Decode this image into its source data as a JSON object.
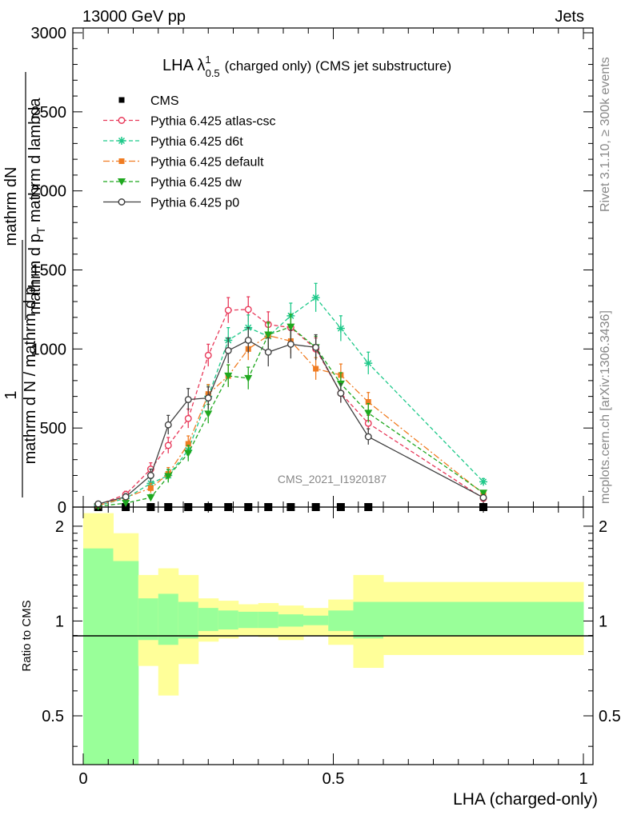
{
  "header": {
    "left": "13000 GeV pp",
    "right": "Jets",
    "rivet_label": "Rivet 3.1.10, ≥ 300k events",
    "source_label": "mcplots.cern.ch [arXiv:1306.3436]",
    "watermark": "CMS_2021_I1920187"
  },
  "top_panel": {
    "title_main": "LHA λ",
    "title_sup": "1",
    "title_sub": "0.5",
    "title_rest": "(charged only) (CMS jet substructure)",
    "ylabel_num": "mathrm dN",
    "ylabel_den_1": "mathrm d p",
    "ylabel_den_T": "T",
    "ylabel_den_2": " mathrm d lambda",
    "ylabel_lead": "1",
    "ylabel_lead_den": "mathrm d N / mathrm d p",
    "ylabel_lead_T": "T",
    "y_ticks": [
      "0",
      "500",
      "1000",
      "1500",
      "2000",
      "2500",
      "3000"
    ]
  },
  "ratio_panel": {
    "ylabel": "Ratio to CMS",
    "y_ticks_left": [
      "0.5",
      "1",
      "2"
    ],
    "y_ticks_right": [
      "0.5",
      "1",
      "2"
    ],
    "x_ticks": [
      "0",
      "0.5",
      "1"
    ],
    "xlabel": "LHA (charged-only)"
  },
  "colors": {
    "data": "#000000",
    "atlas_csc": "#e8395a",
    "d6t": "#1fc98a",
    "default": "#f07c22",
    "dw": "#1fa81f",
    "p0": "#404040",
    "band_inner": "#99ff99",
    "band_outer": "#ffff99"
  },
  "chart_data": {
    "type": "line",
    "xlabel": "LHA (charged-only)",
    "xlim": [
      0,
      1
    ],
    "ylim": [
      0,
      3000
    ],
    "x": [
      0.03,
      0.085,
      0.135,
      0.17,
      0.21,
      0.25,
      0.29,
      0.33,
      0.37,
      0.415,
      0.465,
      0.515,
      0.57,
      0.8
    ],
    "bin_edges": [
      0,
      0.06,
      0.11,
      0.15,
      0.19,
      0.23,
      0.27,
      0.31,
      0.35,
      0.39,
      0.44,
      0.49,
      0.54,
      0.6,
      1.0
    ],
    "series": [
      {
        "name": "CMS",
        "style": "data",
        "values": [
          0,
          0,
          0,
          0,
          0,
          0,
          0,
          0,
          0,
          0,
          0,
          0,
          0,
          0
        ]
      },
      {
        "name": "Pythia 6.425 atlas-csc",
        "style": "atlas_csc",
        "values": [
          15,
          80,
          240,
          390,
          560,
          960,
          1245,
          1250,
          1155,
          1135,
          1000,
          720,
          530,
          55
        ],
        "errors": [
          10,
          20,
          40,
          50,
          60,
          70,
          80,
          80,
          80,
          80,
          70,
          60,
          50,
          15
        ]
      },
      {
        "name": "Pythia 6.425 d6t",
        "style": "d6t",
        "values": [
          10,
          55,
          150,
          200,
          360,
          700,
          1055,
          1135,
          1080,
          1210,
          1325,
          1130,
          910,
          160
        ],
        "errors": [
          8,
          15,
          30,
          40,
          50,
          70,
          80,
          80,
          80,
          80,
          90,
          80,
          70,
          20
        ]
      },
      {
        "name": "Pythia 6.425 default",
        "style": "default",
        "values": [
          10,
          60,
          120,
          210,
          400,
          715,
          830,
          1000,
          1085,
          1050,
          875,
          835,
          665,
          85
        ],
        "errors": [
          8,
          15,
          30,
          40,
          50,
          60,
          70,
          70,
          80,
          80,
          70,
          70,
          60,
          15
        ]
      },
      {
        "name": "Pythia 6.425 dw",
        "style": "dw",
        "values": [
          5,
          25,
          60,
          195,
          340,
          590,
          830,
          815,
          1090,
          1140,
          1010,
          780,
          595,
          90
        ],
        "errors": [
          5,
          10,
          20,
          40,
          50,
          60,
          70,
          70,
          80,
          80,
          70,
          70,
          60,
          15
        ]
      },
      {
        "name": "Pythia 6.425 p0",
        "style": "p0",
        "values": [
          20,
          65,
          200,
          520,
          680,
          690,
          990,
          1055,
          980,
          1030,
          1010,
          720,
          445,
          60
        ],
        "errors": [
          10,
          20,
          40,
          60,
          70,
          70,
          80,
          80,
          90,
          90,
          80,
          60,
          50,
          15
        ]
      }
    ],
    "ratio": {
      "ylim": [
        0.35,
        2.3
      ],
      "scale": "log",
      "reference": 1,
      "inner_band_upper": [
        1.7,
        1.55,
        1.18,
        1.22,
        1.15,
        1.1,
        1.08,
        1.07,
        1.07,
        1.05,
        1.04,
        1.08,
        1.15,
        1.15
      ],
      "inner_band_lower": [
        0.3,
        0.3,
        0.87,
        0.84,
        0.88,
        0.93,
        0.94,
        0.95,
        0.95,
        0.96,
        0.97,
        0.93,
        0.88,
        0.9
      ],
      "outer_band_upper": [
        2.2,
        1.9,
        1.4,
        1.47,
        1.4,
        1.18,
        1.16,
        1.13,
        1.14,
        1.12,
        1.1,
        1.17,
        1.4,
        1.33
      ],
      "outer_band_lower": [
        0.3,
        0.58,
        0.72,
        0.58,
        0.73,
        0.86,
        0.88,
        0.9,
        0.89,
        0.87,
        0.9,
        0.84,
        0.71,
        0.78
      ]
    }
  }
}
